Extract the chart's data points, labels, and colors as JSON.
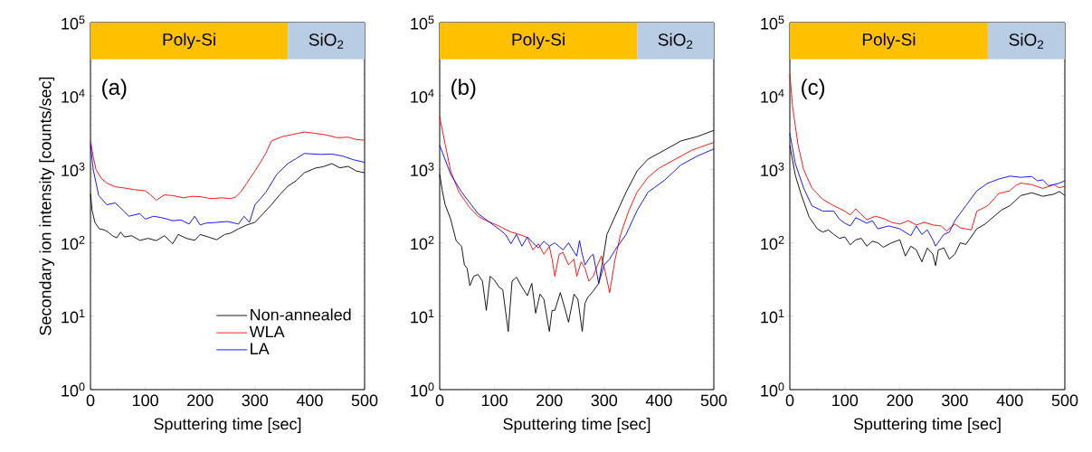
{
  "chart_data": [
    {
      "type": "line",
      "xlabel": "Sputtering time [sec]",
      "ylabel": "Secondary ion intensity [counts/sec]",
      "xlim": [
        0,
        500
      ],
      "xticks": [
        0,
        100,
        200,
        300,
        400,
        500
      ],
      "ylim": [
        1,
        100000
      ],
      "yticks": [
        {
          "value": 1,
          "label": "10$^{0}$"
        },
        {
          "value": 10,
          "label": "10$^{1}$"
        },
        {
          "value": 100,
          "label": "10$^{2}$"
        },
        {
          "value": 1000,
          "label": "10$^{3}$"
        },
        {
          "value": 10000,
          "label": "10$^{4}$"
        },
        {
          "value": 100000,
          "label": "10$^{5}$"
        }
      ],
      "log": "y",
      "legend": "bottom right",
      "annotations": [
        "(a)"
      ],
      "bands": [
        {
          "axis": "x",
          "from": 0,
          "to": 360,
          "label": "Poly-Si",
          "color": "#ffc000"
        },
        {
          "axis": "x",
          "from": 360,
          "to": 500,
          "label": "SiO$_{2}$",
          "color": "#b8cce4"
        }
      ],
      "series": [
        {
          "name": "Non-annealed",
          "color": "#000000",
          "x": [
            0,
            3,
            8,
            16,
            25,
            32,
            40,
            48,
            55,
            62,
            75,
            90,
            105,
            120,
            135,
            150,
            160,
            175,
            190,
            200,
            215,
            230,
            245,
            255,
            270,
            285,
            300,
            315,
            330,
            345,
            360,
            375,
            390,
            410,
            425,
            440,
            455,
            470,
            485,
            500
          ],
          "values": [
            465,
            275,
            190,
            155,
            150,
            140,
            125,
            117,
            140,
            120,
            125,
            108,
            115,
            107,
            125,
            97,
            130,
            115,
            108,
            130,
            120,
            110,
            130,
            135,
            155,
            175,
            190,
            250,
            330,
            450,
            590,
            700,
            900,
            1040,
            1090,
            1200,
            1050,
            1100,
            950,
            900
          ]
        },
        {
          "name": "WLA",
          "color": "#ff0000",
          "x": [
            0,
            5,
            10,
            20,
            30,
            45,
            60,
            80,
            100,
            110,
            120,
            135,
            150,
            170,
            185,
            200,
            220,
            240,
            255,
            265,
            275,
            285,
            300,
            310,
            320,
            330,
            350,
            370,
            390,
            410,
            430,
            450,
            470,
            485,
            500
          ],
          "values": [
            2450,
            1500,
            1000,
            750,
            650,
            580,
            560,
            530,
            510,
            450,
            380,
            450,
            440,
            410,
            430,
            425,
            400,
            410,
            400,
            420,
            500,
            650,
            950,
            1250,
            1660,
            2440,
            2800,
            3000,
            3230,
            3100,
            2950,
            2700,
            2750,
            2550,
            2500
          ]
        },
        {
          "name": "LA",
          "color": "#0000ff",
          "x": [
            0,
            5,
            15,
            30,
            45,
            60,
            70,
            90,
            100,
            115,
            130,
            150,
            165,
            180,
            190,
            200,
            210,
            230,
            250,
            270,
            280,
            290,
            300,
            310,
            320,
            340,
            360,
            375,
            390,
            420,
            440,
            460,
            480,
            500
          ],
          "values": [
            2200,
            1000,
            440,
            330,
            350,
            275,
            230,
            250,
            210,
            230,
            220,
            200,
            205,
            180,
            230,
            175,
            185,
            190,
            195,
            180,
            230,
            190,
            330,
            400,
            490,
            860,
            1200,
            1400,
            1650,
            1600,
            1620,
            1520,
            1350,
            1250
          ]
        }
      ]
    },
    {
      "type": "line",
      "xlabel": "Sputtering time [sec]",
      "xlim": [
        0,
        500
      ],
      "xticks": [
        0,
        100,
        200,
        300,
        400,
        500
      ],
      "ylim": [
        1,
        100000
      ],
      "yticks": [
        {
          "value": 1,
          "label": "10$^{0}$"
        },
        {
          "value": 10,
          "label": "10$^{1}$"
        },
        {
          "value": 100,
          "label": "10$^{2}$"
        },
        {
          "value": 1000,
          "label": "10$^{3}$"
        },
        {
          "value": 10000,
          "label": "10$^{4}$"
        },
        {
          "value": 100000,
          "label": "10$^{5}$"
        }
      ],
      "log": "y",
      "annotations": [
        "(b)"
      ],
      "bands": [
        {
          "axis": "x",
          "from": 0,
          "to": 360,
          "label": "Poly-Si",
          "color": "#ffc000"
        },
        {
          "axis": "x",
          "from": 360,
          "to": 500,
          "label": "SiO$_{2}$",
          "color": "#b8cce4"
        }
      ],
      "series": [
        {
          "color": "#000000",
          "x": [
            0,
            5,
            10,
            20,
            30,
            40,
            45,
            50,
            55,
            62,
            70,
            78,
            85,
            92,
            100,
            108,
            115,
            125,
            132,
            140,
            150,
            160,
            168,
            175,
            183,
            190,
            200,
            205,
            210,
            220,
            228,
            235,
            245,
            252,
            260,
            265,
            270,
            280,
            290,
            298,
            305,
            320,
            340,
            360,
            380,
            410,
            440,
            470,
            500
          ],
          "values": [
            860,
            500,
            330,
            210,
            107,
            89,
            50,
            45,
            26,
            35,
            37,
            30,
            12,
            35,
            31,
            25,
            23,
            6.2,
            30,
            34,
            25,
            19,
            28,
            11,
            20,
            17,
            6.2,
            12,
            12,
            21,
            13,
            8.3,
            20,
            17,
            6.2,
            15,
            18,
            22,
            28,
            60,
            130,
            230,
            490,
            950,
            1380,
            1830,
            2440,
            2800,
            3400
          ]
        },
        {
          "color": "#ff0000",
          "x": [
            0,
            10,
            20,
            35,
            55,
            70,
            85,
            100,
            115,
            130,
            145,
            160,
            170,
            180,
            190,
            200,
            205,
            210,
            218,
            225,
            235,
            245,
            250,
            258,
            265,
            272,
            280,
            288,
            295,
            302,
            310,
            320,
            330,
            345,
            360,
            380,
            400,
            430,
            460,
            500
          ],
          "values": [
            5200,
            2200,
            950,
            490,
            300,
            230,
            200,
            180,
            160,
            140,
            130,
            118,
            80,
            97,
            70,
            89,
            60,
            35,
            70,
            74,
            50,
            60,
            35,
            55,
            45,
            30,
            35,
            50,
            66,
            40,
            21,
            60,
            130,
            275,
            490,
            780,
            1040,
            1380,
            1830,
            2330
          ]
        },
        {
          "color": "#0000ff",
          "x": [
            0,
            20,
            40,
            70,
            100,
            110,
            120,
            130,
            140,
            150,
            160,
            170,
            180,
            190,
            200,
            210,
            225,
            235,
            245,
            250,
            255,
            260,
            265,
            275,
            280,
            290,
            300,
            310,
            320,
            340,
            360,
            380,
            410,
            440,
            470,
            500
          ],
          "values": [
            2130,
            860,
            490,
            250,
            170,
            150,
            130,
            97,
            130,
            90,
            120,
            100,
            85,
            105,
            90,
            100,
            80,
            100,
            75,
            66,
            107,
            70,
            50,
            65,
            70,
            28,
            50,
            60,
            80,
            130,
            275,
            490,
            710,
            1150,
            1520,
            1900
          ]
        }
      ]
    },
    {
      "type": "line",
      "xlabel": "Sputtering time [sec]",
      "xlim": [
        0,
        500
      ],
      "xticks": [
        0,
        100,
        200,
        300,
        400,
        500
      ],
      "ylim": [
        1,
        100000
      ],
      "yticks": [
        {
          "value": 1,
          "label": "10$^{0}$"
        },
        {
          "value": 10,
          "label": "10$^{1}$"
        },
        {
          "value": 100,
          "label": "10$^{2}$"
        },
        {
          "value": 1000,
          "label": "10$^{3}$"
        },
        {
          "value": 10000,
          "label": "10$^{4}$"
        },
        {
          "value": 100000,
          "label": "10$^{5}$"
        }
      ],
      "log": "y",
      "annotations": [
        "(c)"
      ],
      "bands": [
        {
          "axis": "x",
          "from": 0,
          "to": 360,
          "label": "Poly-Si",
          "color": "#ffc000"
        },
        {
          "axis": "x",
          "from": 360,
          "to": 500,
          "label": "SiO$_{2}$",
          "color": "#b8cce4"
        }
      ],
      "series": [
        {
          "color": "#000000",
          "x": [
            0,
            10,
            20,
            35,
            50,
            60,
            70,
            80,
            90,
            100,
            110,
            120,
            130,
            140,
            150,
            160,
            170,
            185,
            200,
            210,
            220,
            230,
            240,
            250,
            260,
            265,
            270,
            280,
            290,
            300,
            310,
            320,
            340,
            355,
            370,
            385,
            400,
            420,
            440,
            460,
            480,
            490,
            500
          ],
          "values": [
            2130,
            830,
            470,
            225,
            155,
            140,
            150,
            130,
            115,
            120,
            94,
            110,
            115,
            90,
            105,
            100,
            87,
            100,
            110,
            66,
            90,
            80,
            55,
            85,
            70,
            49,
            80,
            85,
            60,
            70,
            100,
            95,
            155,
            180,
            225,
            280,
            320,
            440,
            480,
            430,
            460,
            500,
            440
          ]
        },
        {
          "color": "#ff0000",
          "x": [
            0,
            5,
            15,
            25,
            40,
            60,
            80,
            100,
            110,
            120,
            140,
            155,
            170,
            185,
            200,
            215,
            230,
            245,
            260,
            275,
            285,
            300,
            310,
            320,
            330,
            340,
            360,
            380,
            400,
            410,
            420,
            440,
            460,
            480,
            490,
            500
          ],
          "values": [
            20000,
            7200,
            2150,
            1000,
            560,
            390,
            320,
            270,
            240,
            290,
            205,
            230,
            215,
            190,
            180,
            200,
            175,
            190,
            175,
            170,
            145,
            180,
            160,
            155,
            150,
            270,
            320,
            470,
            510,
            600,
            650,
            620,
            550,
            620,
            560,
            590
          ]
        },
        {
          "color": "#0000ff",
          "x": [
            0,
            10,
            25,
            40,
            60,
            80,
            90,
            100,
            110,
            120,
            140,
            150,
            160,
            180,
            200,
            220,
            230,
            240,
            250,
            260,
            265,
            280,
            290,
            300,
            320,
            340,
            360,
            380,
            400,
            420,
            440,
            450,
            460,
            470,
            480,
            490,
            500
          ],
          "values": [
            3100,
            1200,
            560,
            320,
            270,
            270,
            210,
            185,
            170,
            220,
            185,
            200,
            155,
            170,
            155,
            125,
            170,
            130,
            150,
            110,
            90,
            130,
            140,
            200,
            320,
            510,
            650,
            740,
            810,
            780,
            800,
            700,
            720,
            600,
            620,
            650,
            700
          ]
        }
      ]
    }
  ]
}
